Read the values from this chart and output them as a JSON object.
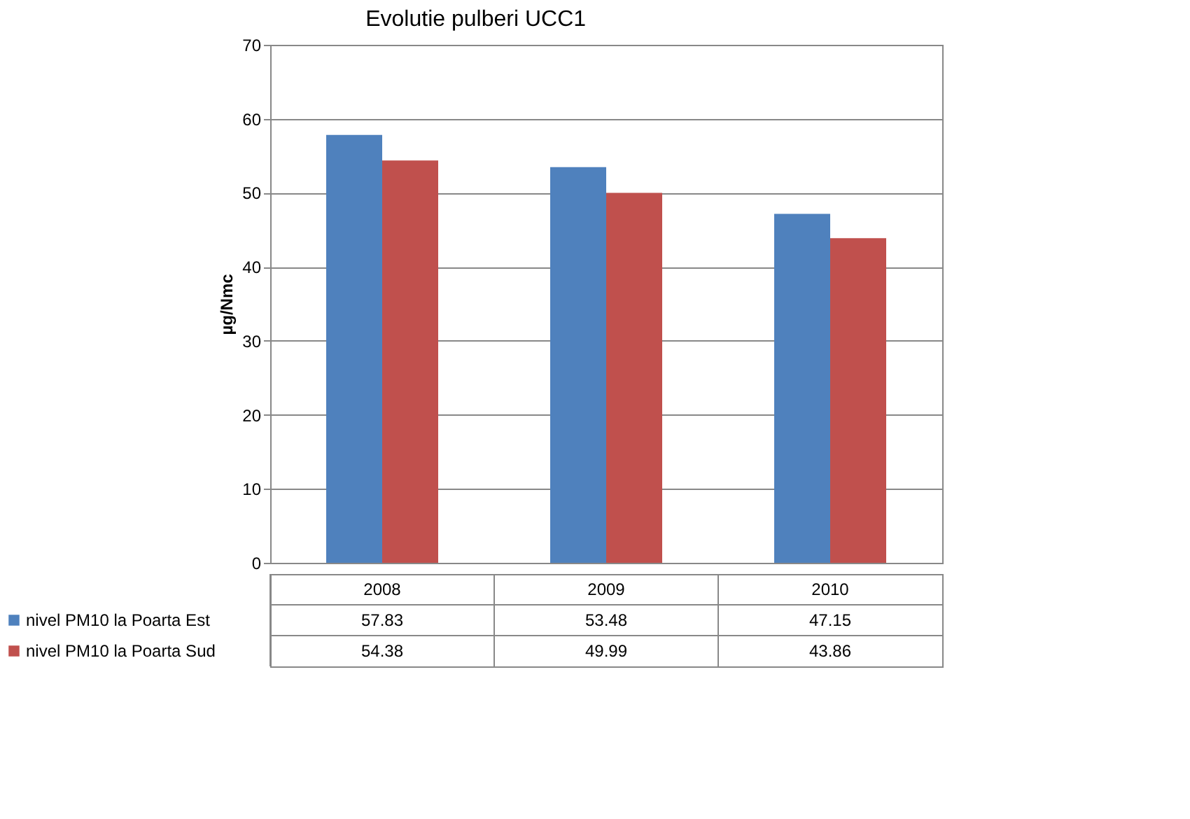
{
  "chart_data": {
    "type": "bar",
    "title": "Evolutie pulberi UCC1",
    "ylabel": "µg/Nmc",
    "categories": [
      "2008",
      "2009",
      "2010"
    ],
    "series": [
      {
        "name": "nivel PM10 la Poarta Est",
        "color": "#4f81bd",
        "values": [
          57.83,
          53.48,
          47.15
        ]
      },
      {
        "name": "nivel PM10 la Poarta Sud",
        "color": "#c0504d",
        "values": [
          54.38,
          49.99,
          43.86
        ]
      }
    ],
    "ylim": [
      0,
      70
    ],
    "yticks": [
      0,
      10,
      20,
      30,
      40,
      50,
      60,
      70
    ],
    "grid": "y",
    "legend": "bottom",
    "data_labels": true
  }
}
